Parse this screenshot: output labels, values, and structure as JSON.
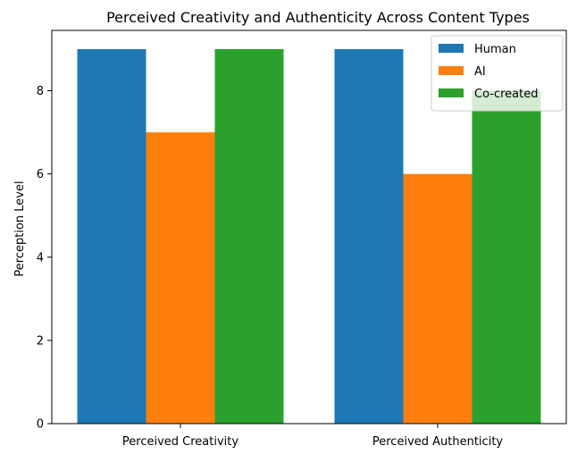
{
  "chart_data": {
    "type": "bar",
    "title": "Perceived Creativity and Authenticity Across Content Types",
    "xlabel": "",
    "ylabel": "Perception Level",
    "categories": [
      "Perceived Creativity",
      "Perceived Authenticity"
    ],
    "series": [
      {
        "name": "Human",
        "values": [
          9,
          9
        ],
        "color": "#1f77b4"
      },
      {
        "name": "AI",
        "values": [
          7,
          6
        ],
        "color": "#ff7f0e"
      },
      {
        "name": "Co-created",
        "values": [
          9,
          8
        ],
        "color": "#2ca02c"
      }
    ],
    "ylim": [
      0,
      9.45
    ],
    "yticks": [
      0,
      2,
      4,
      6,
      8
    ],
    "grid": false,
    "legend_position": "top-right"
  }
}
